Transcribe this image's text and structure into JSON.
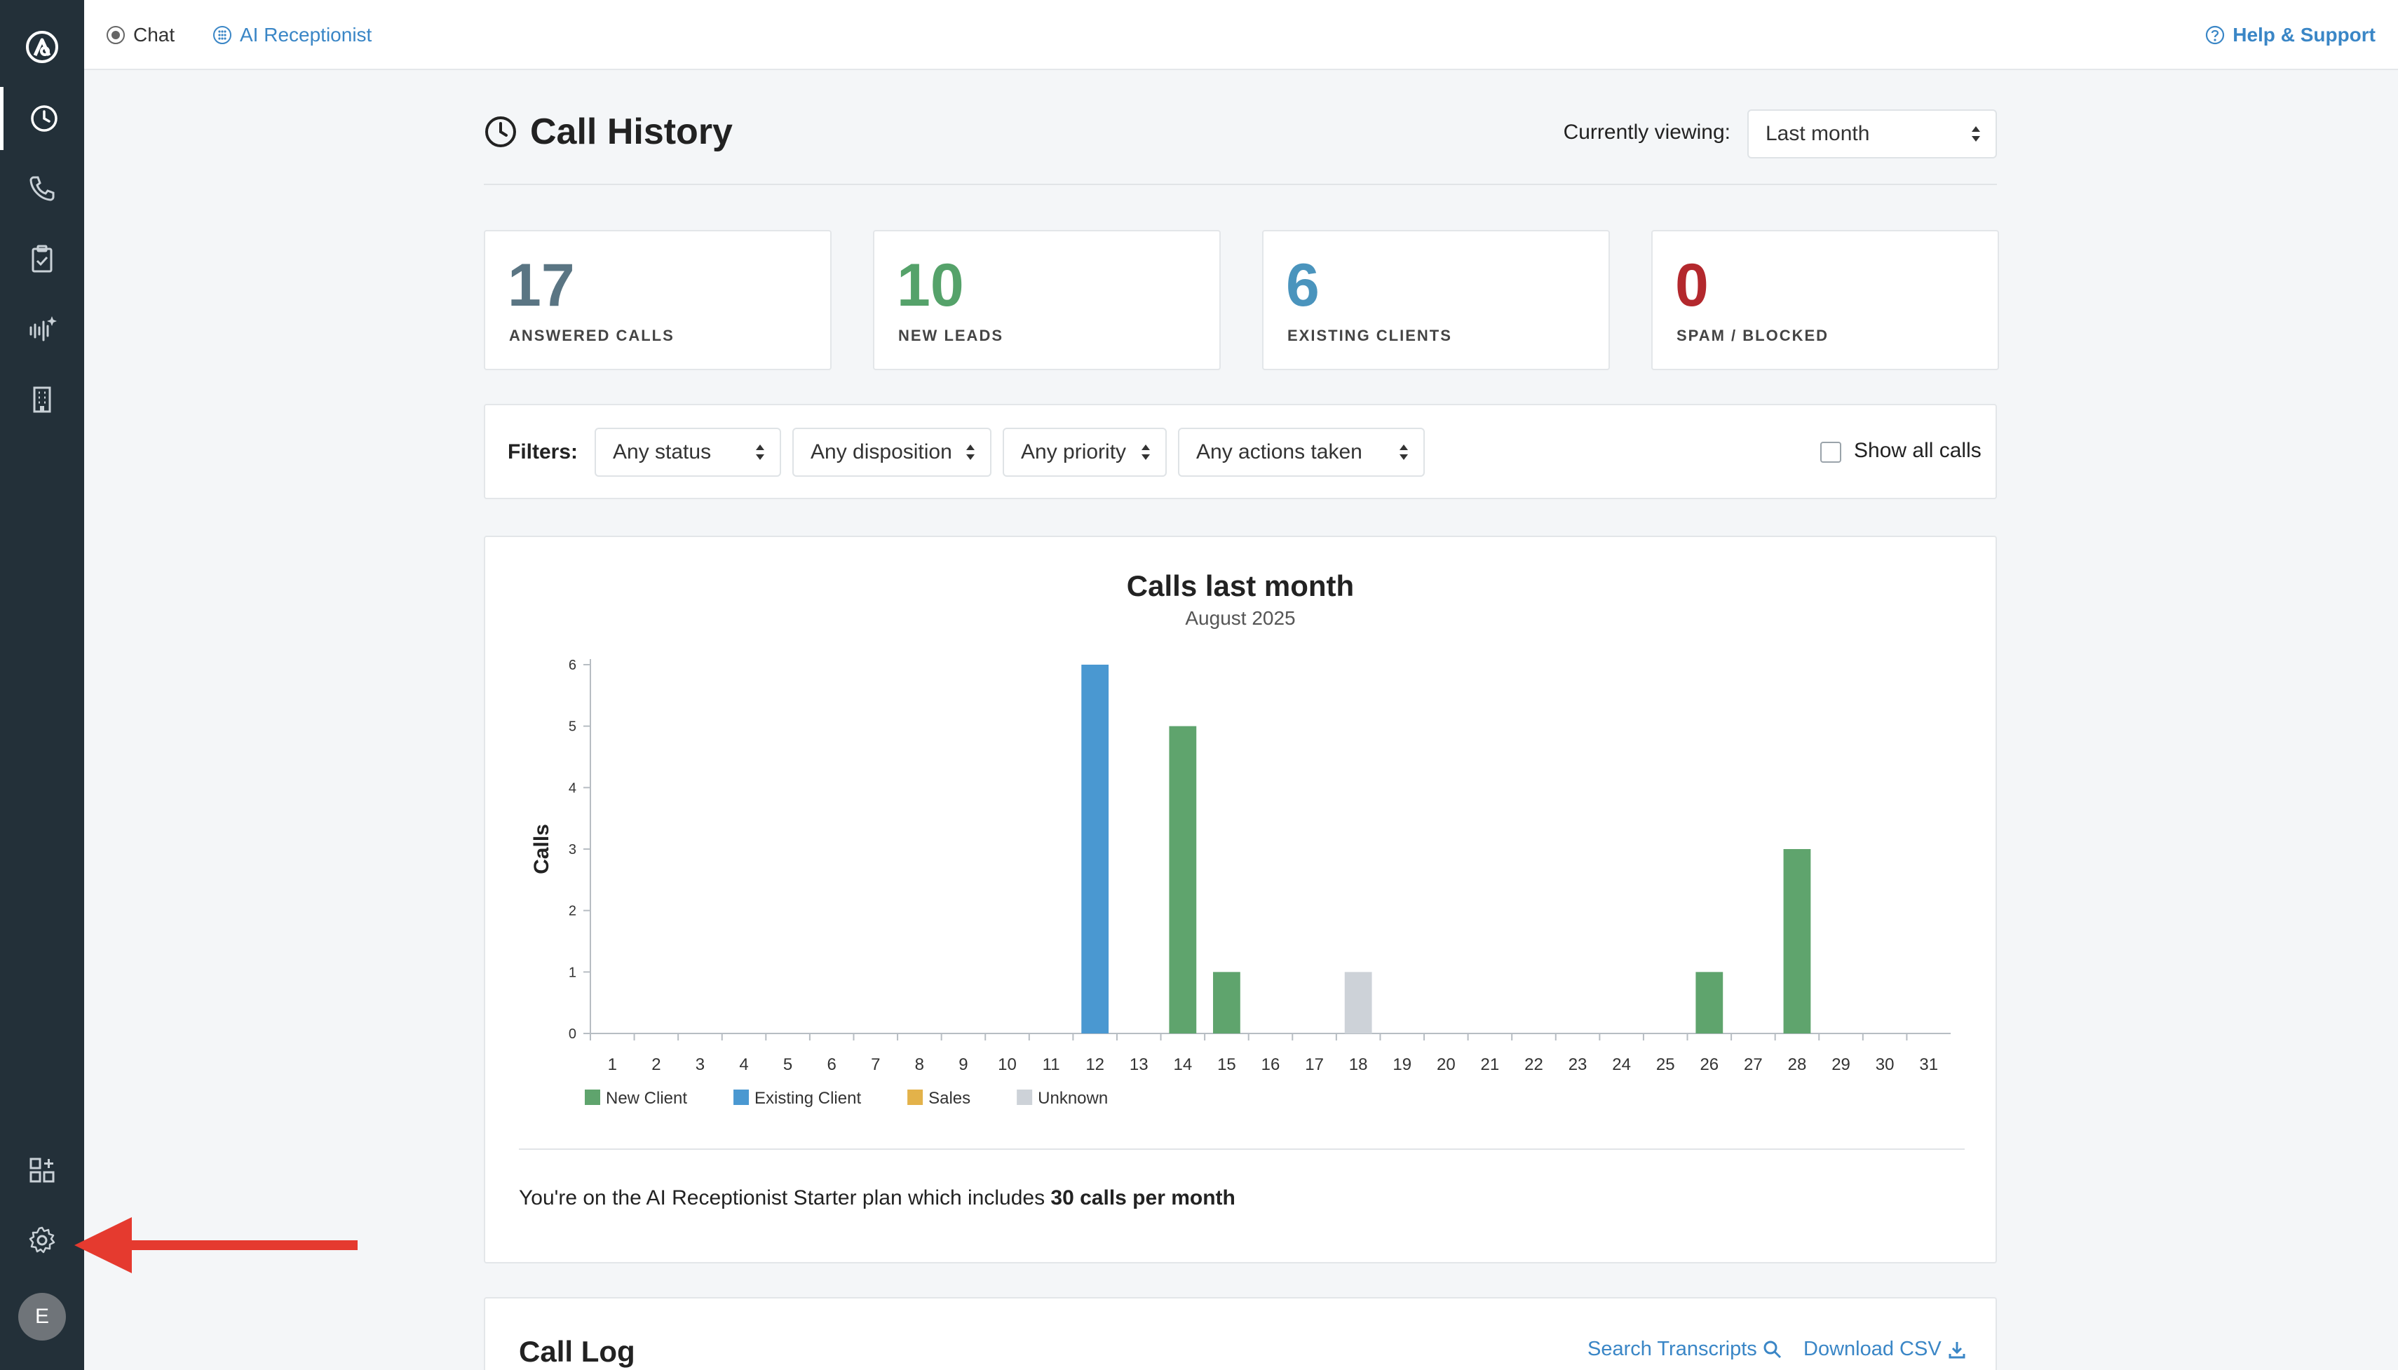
{
  "topbar": {
    "tabs": [
      {
        "label": "Chat"
      },
      {
        "label": "AI Receptionist"
      }
    ],
    "help_label": "Help & Support"
  },
  "sidebar": {
    "avatar_initial": "E",
    "items": [
      "logo-icon",
      "clock-icon",
      "phone-icon",
      "clipboard-check-icon",
      "sound-sparkle-icon",
      "building-icon",
      "apps-grid-icon",
      "gear-icon"
    ]
  },
  "header": {
    "title": "Call History",
    "viewing_label": "Currently viewing:",
    "viewing_value": "Last month"
  },
  "stats": [
    {
      "value": "17",
      "label": "ANSWERED CALLS",
      "color": "#5a7583"
    },
    {
      "value": "10",
      "label": "NEW LEADS",
      "color": "#55a26a"
    },
    {
      "value": "6",
      "label": "EXISTING CLIENTS",
      "color": "#4a94bd"
    },
    {
      "value": "0",
      "label": "SPAM / BLOCKED",
      "color": "#b3282d"
    }
  ],
  "filters": {
    "label": "Filters:",
    "selects": [
      "Any status",
      "Any disposition",
      "Any priority",
      "Any actions taken"
    ],
    "show_all_label": "Show all calls"
  },
  "chart_data": {
    "type": "bar",
    "title": "Calls last month",
    "subtitle": "August 2025",
    "ylabel": "Calls",
    "ylim": [
      0,
      6
    ],
    "yticks": [
      0,
      1,
      2,
      3,
      4,
      5,
      6
    ],
    "categories": [
      "1",
      "2",
      "3",
      "4",
      "5",
      "6",
      "7",
      "8",
      "9",
      "10",
      "11",
      "12",
      "13",
      "14",
      "15",
      "16",
      "17",
      "18",
      "19",
      "20",
      "21",
      "22",
      "23",
      "24",
      "25",
      "26",
      "27",
      "28",
      "29",
      "30",
      "31"
    ],
    "series": [
      {
        "name": "New Client",
        "color": "#5fa46d",
        "values": [
          0,
          0,
          0,
          0,
          0,
          0,
          0,
          0,
          0,
          0,
          0,
          0,
          0,
          5,
          1,
          0,
          0,
          0,
          0,
          0,
          0,
          0,
          0,
          0,
          0,
          1,
          0,
          3,
          0,
          0,
          0
        ]
      },
      {
        "name": "Existing Client",
        "color": "#4a98d1",
        "values": [
          0,
          0,
          0,
          0,
          0,
          0,
          0,
          0,
          0,
          0,
          0,
          6,
          0,
          0,
          0,
          0,
          0,
          0,
          0,
          0,
          0,
          0,
          0,
          0,
          0,
          0,
          0,
          0,
          0,
          0,
          0
        ]
      },
      {
        "name": "Sales",
        "color": "#e3b24a",
        "values": [
          0,
          0,
          0,
          0,
          0,
          0,
          0,
          0,
          0,
          0,
          0,
          0,
          0,
          0,
          0,
          0,
          0,
          0,
          0,
          0,
          0,
          0,
          0,
          0,
          0,
          0,
          0,
          0,
          0,
          0,
          0
        ]
      },
      {
        "name": "Unknown",
        "color": "#cdd2d8",
        "values": [
          0,
          0,
          0,
          0,
          0,
          0,
          0,
          0,
          0,
          0,
          0,
          0,
          0,
          0,
          0,
          0,
          0,
          1,
          0,
          0,
          0,
          0,
          0,
          0,
          0,
          0,
          0,
          0,
          0,
          0,
          0
        ]
      }
    ],
    "legend_position": "bottom-left",
    "grid": false
  },
  "plan": {
    "text_before": "You're on the AI Receptionist Starter plan which includes ",
    "text_bold": "30 calls per month"
  },
  "call_log": {
    "title": "Call Log",
    "search_label": "Search Transcripts",
    "download_label": "Download CSV"
  },
  "colors": {
    "sidebar_bg": "#233039",
    "link_blue": "#3a86c6",
    "annotation_arrow": "#e53a2f"
  }
}
